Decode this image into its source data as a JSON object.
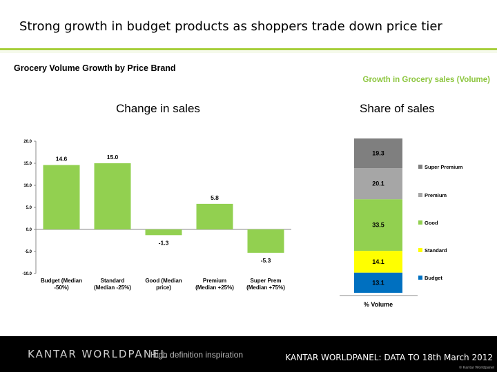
{
  "slide": {
    "title": "Strong growth in budget products as shoppers trade down price tier",
    "chart_heading": "Grocery Volume Growth by Price Brand",
    "right_heading": "Growth in Grocery sales (Volume)"
  },
  "footer": {
    "logo": "KANTAR WORLDPANEL",
    "tagline": "High definition inspiration",
    "data_note": "KANTAR WORLDPANEL: DATA TO 18th March 2012",
    "copyright": "© Kantar Worldpanel"
  },
  "colors": {
    "accent_green": "#8dc63f",
    "bar_green": "#92d050",
    "super_premium": "#7f7f7f",
    "premium": "#a6a6a6",
    "good": "#92d050",
    "standard": "#ffff00",
    "budget": "#0070c0"
  },
  "chart_data": [
    {
      "type": "bar",
      "title": "Change in sales",
      "categories": [
        "Budget (Median -50%)",
        "Standard (Median -25%)",
        "Good (Median price)",
        "Premium (Median +25%)",
        "Super Prem (Median +75%)"
      ],
      "category_lines": [
        [
          "Budget (Median",
          "-50%)"
        ],
        [
          "Standard",
          "(Median -25%)"
        ],
        [
          "Good (Median",
          "price)"
        ],
        [
          "Premium",
          "(Median +25%)"
        ],
        [
          "Super Prem",
          "(Median +75%)"
        ]
      ],
      "values": [
        14.6,
        15.0,
        -1.3,
        5.8,
        -5.3
      ],
      "value_labels": [
        "14.6",
        "15.0",
        "-1.3",
        "5.8",
        "-5.3"
      ],
      "ylim": [
        -10,
        20
      ],
      "yticks": [
        -10,
        -5,
        0,
        5,
        10,
        15,
        20
      ],
      "ytick_labels": [
        "-10.0",
        "-5.0",
        "0.0",
        "5.0",
        "10.0",
        "15.0",
        "20.0"
      ],
      "grid": false,
      "xlabel": "",
      "ylabel": ""
    },
    {
      "type": "bar",
      "stacked": true,
      "title": "Share of sales",
      "xlabel": "% Volume",
      "series": [
        {
          "name": "Budget",
          "value": 13.1,
          "label": "13.1",
          "color": "#0070c0"
        },
        {
          "name": "Standard",
          "value": 14.1,
          "label": "14.1",
          "color": "#ffff00"
        },
        {
          "name": "Good",
          "value": 33.5,
          "label": "33.5",
          "color": "#92d050"
        },
        {
          "name": "Premium",
          "value": 20.1,
          "label": "20.1",
          "color": "#a6a6a6"
        },
        {
          "name": "Super Premium",
          "value": 19.3,
          "label": "19.3",
          "color": "#7f7f7f"
        }
      ],
      "legend_placement": "right"
    }
  ]
}
